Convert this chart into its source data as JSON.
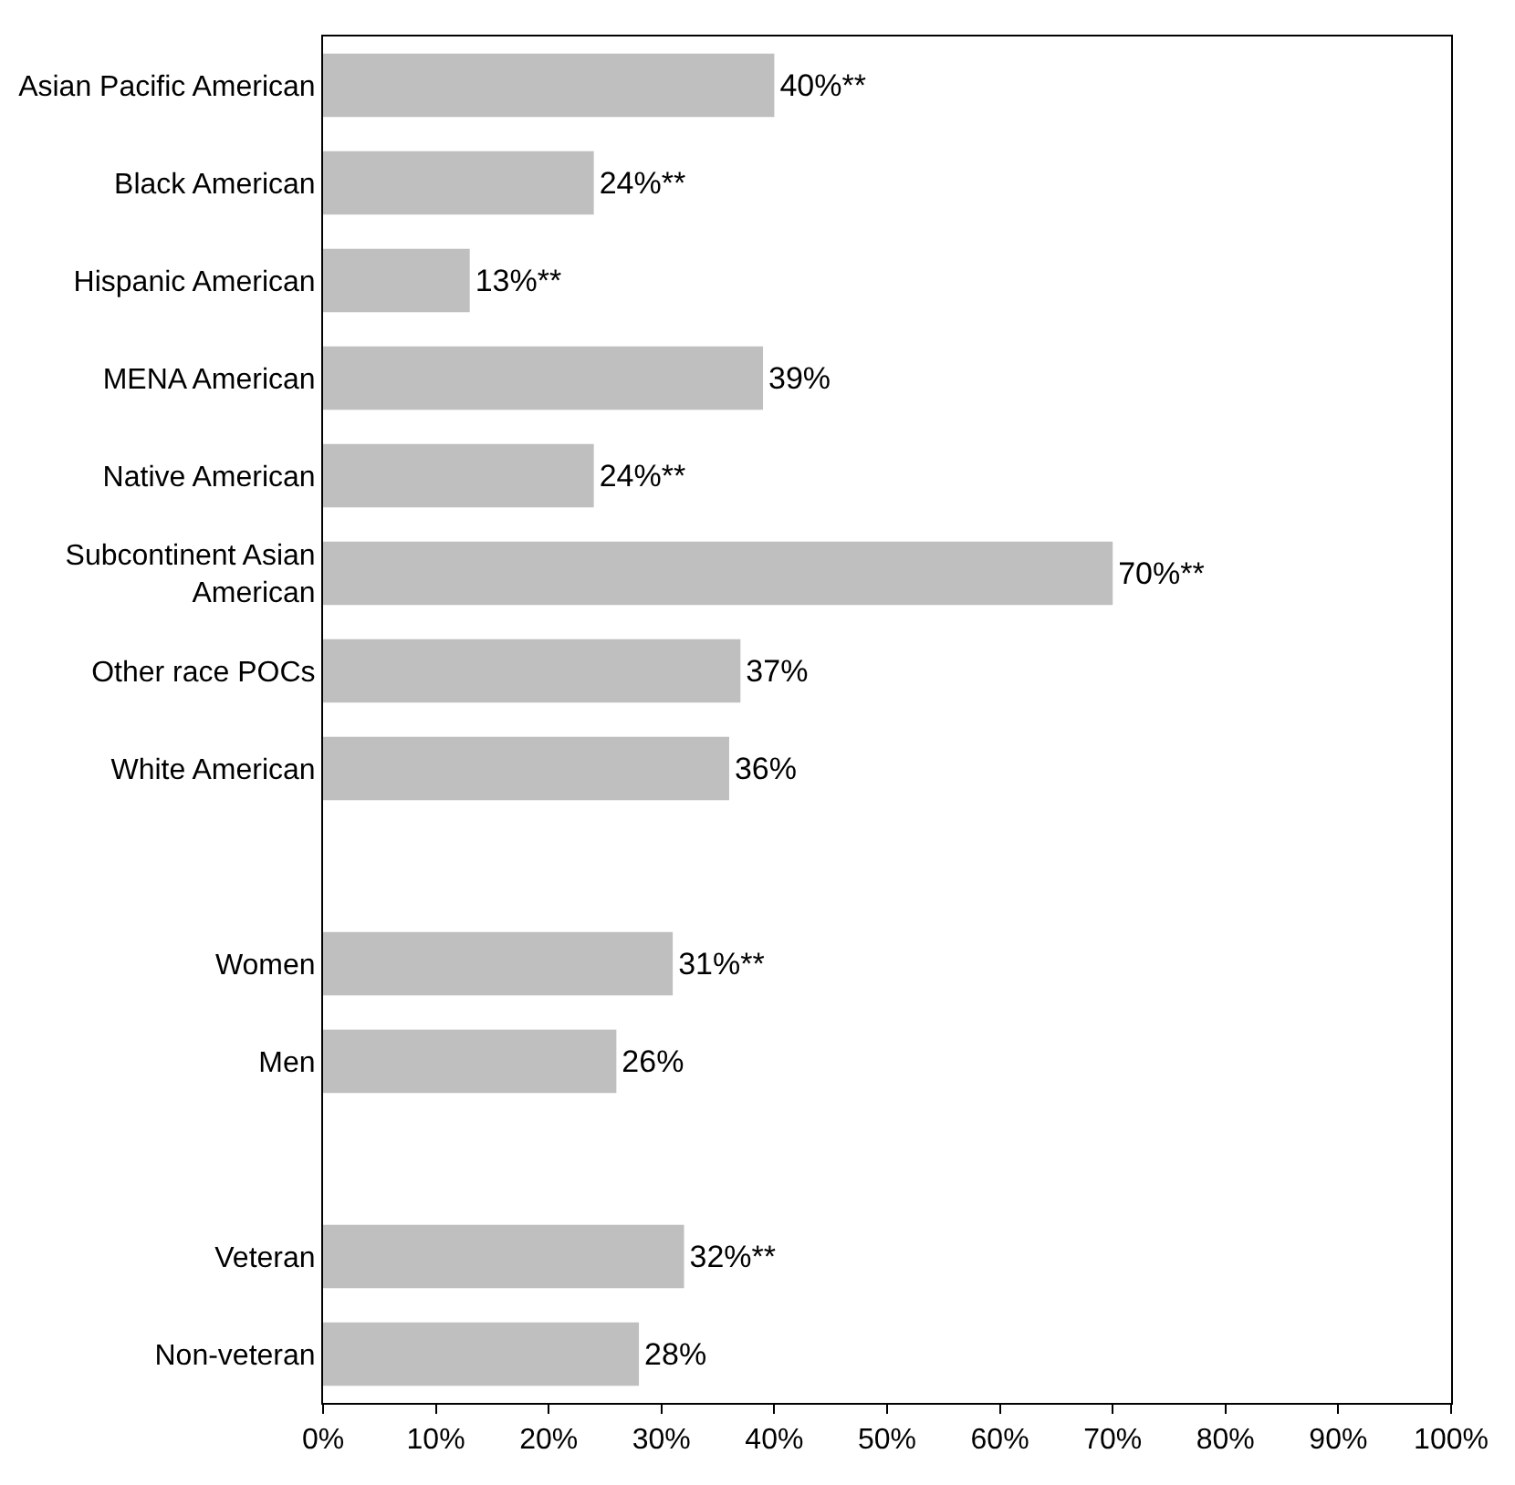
{
  "chart_data": {
    "type": "bar",
    "orientation": "horizontal",
    "categories": [
      "Asian Pacific American",
      "Black American",
      "Hispanic American",
      "MENA American",
      "Native American",
      "Subcontinent Asian American",
      "Other race POCs",
      "White American",
      null,
      "Women",
      "Men",
      null,
      "Veteran",
      "Non-veteran"
    ],
    "values": [
      40,
      24,
      13,
      39,
      24,
      70,
      37,
      36,
      null,
      31,
      26,
      null,
      32,
      28
    ],
    "value_labels": [
      "40%**",
      "24%**",
      "13%**",
      "39%",
      "24%**",
      "70%**",
      "37%",
      "36%",
      null,
      "31%**",
      "26%",
      null,
      "32%**",
      "28%"
    ],
    "color": "#bfbfbf",
    "xlim": [
      0,
      100
    ],
    "xticks": [
      {
        "value": 0,
        "label": "0%"
      },
      {
        "value": 10,
        "label": "10%"
      },
      {
        "value": 20,
        "label": "20%"
      },
      {
        "value": 30,
        "label": "30%"
      },
      {
        "value": 40,
        "label": "40%"
      },
      {
        "value": 50,
        "label": "50%"
      },
      {
        "value": 60,
        "label": "60%"
      },
      {
        "value": 70,
        "label": "70%"
      },
      {
        "value": 80,
        "label": "80%"
      },
      {
        "value": 90,
        "label": "90%"
      },
      {
        "value": 100,
        "label": "100%"
      }
    ],
    "legend": false
  }
}
